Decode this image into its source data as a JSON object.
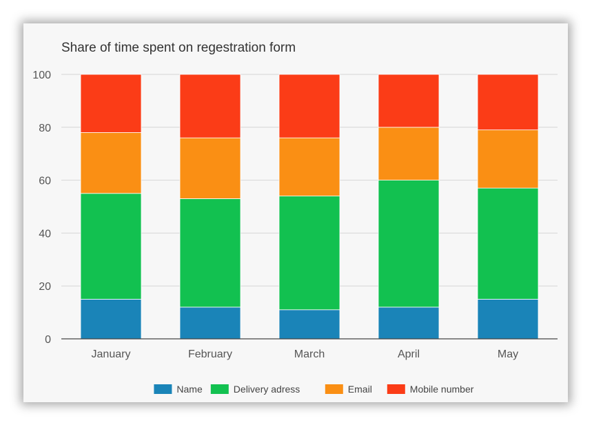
{
  "chart_data": {
    "type": "bar",
    "stacked": true,
    "title": "Share of time spent on regestration form",
    "xlabel": "",
    "ylabel": "",
    "ylim": [
      0,
      100
    ],
    "yticks": [
      0,
      20,
      40,
      60,
      80,
      100
    ],
    "grid": true,
    "legend": "bottom",
    "categories": [
      "January",
      "February",
      "March",
      "April",
      "May"
    ],
    "series": [
      {
        "name": "Name",
        "color": "#1a84b8",
        "values": [
          15,
          12,
          11,
          12,
          15
        ]
      },
      {
        "name": "Delivery adress",
        "color": "#12c150",
        "values": [
          40,
          41,
          43,
          48,
          42
        ]
      },
      {
        "name": "Email",
        "color": "#fa8f14",
        "values": [
          23,
          23,
          22,
          20,
          22
        ]
      },
      {
        "name": "Mobile number",
        "color": "#fb3c17",
        "values": [
          22,
          24,
          24,
          20,
          21
        ]
      }
    ]
  }
}
